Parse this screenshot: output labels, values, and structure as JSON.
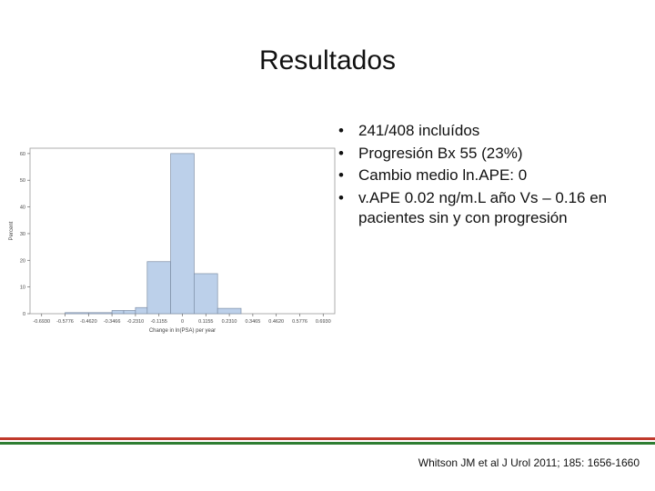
{
  "slide": {
    "title": "Resultados",
    "bullets": [
      "241/408 incluídos",
      "Progresión Bx 55 (23%)",
      "Cambio medio ln.APE: 0",
      "v.APE 0.02 ng/m.L año Vs – 0.16 en pacientes sin y con progresión"
    ],
    "bullet_symbol": "•",
    "citation": "Whitson JM et al J Urol 2011; 185: 1656-1660",
    "footer_colors": [
      "#c0392b",
      "#2e7d32"
    ]
  },
  "chart_data": {
    "type": "bar",
    "ylabel": "Percent",
    "xlabel": "Change in ln(PSA) per year",
    "yticks": [
      "0",
      "10",
      "20",
      "30",
      "40",
      "50",
      "60"
    ],
    "ylim": [
      0,
      62
    ],
    "xticks": [
      "-0.6930",
      "-0.5776",
      "-0.4620",
      "-0.3466",
      "-0.2310",
      "-0.1155",
      "0",
      "0.1155",
      "0.2310",
      "0.3465",
      "0.4620",
      "0.5776",
      "0.6930"
    ],
    "xlim": [
      -0.75,
      0.75
    ],
    "bins": [
      {
        "x0": -0.5776,
        "x1": -0.462,
        "value": 0.4
      },
      {
        "x0": -0.462,
        "x1": -0.3466,
        "value": 0.4
      },
      {
        "x0": -0.3466,
        "x1": -0.2888,
        "value": 1.2
      },
      {
        "x0": -0.2888,
        "x1": -0.231,
        "value": 1.2
      },
      {
        "x0": -0.231,
        "x1": -0.1732,
        "value": 2.3
      },
      {
        "x0": -0.1732,
        "x1": -0.0578,
        "value": 19.5
      },
      {
        "x0": -0.0578,
        "x1": 0.0578,
        "value": 60
      },
      {
        "x0": 0.0578,
        "x1": 0.1732,
        "value": 15
      },
      {
        "x0": 0.1732,
        "x1": 0.2888,
        "value": 2
      }
    ],
    "bar_color": "#bcd0ea",
    "bar_stroke": "#7f8fa6",
    "grid": false
  }
}
